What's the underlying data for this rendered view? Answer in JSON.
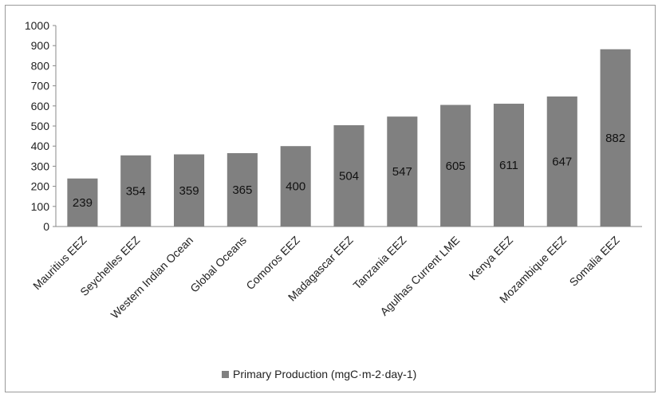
{
  "chart_data": {
    "type": "bar",
    "categories": [
      "Mauritius EEZ",
      "Seychelles EEZ",
      "Western Indian Ocean",
      "Global Oceans",
      "Comoros EEZ",
      "Madagascar EEZ",
      "Tanzania EEZ",
      "Agulhas Current LME",
      "Kenya EEZ",
      "Mozambique EEZ",
      "Somalia EEZ"
    ],
    "series": [
      {
        "name": "Primary Production (mgC·m-2·day-1)",
        "values": [
          239,
          354,
          359,
          365,
          400,
          504,
          547,
          605,
          611,
          647,
          882
        ]
      }
    ],
    "data_labels": [
      "239",
      "354",
      "359",
      "365",
      "400",
      "504",
      "547",
      "605",
      "611",
      "647",
      "882"
    ],
    "title": "",
    "xlabel": "",
    "ylabel": "",
    "ylim": [
      0,
      1000
    ],
    "yticks": [
      "0",
      "100",
      "200",
      "300",
      "400",
      "500",
      "600",
      "700",
      "800",
      "900",
      "1000"
    ],
    "grid": false,
    "legend_position": "bottom",
    "bar_color": "#808080"
  }
}
